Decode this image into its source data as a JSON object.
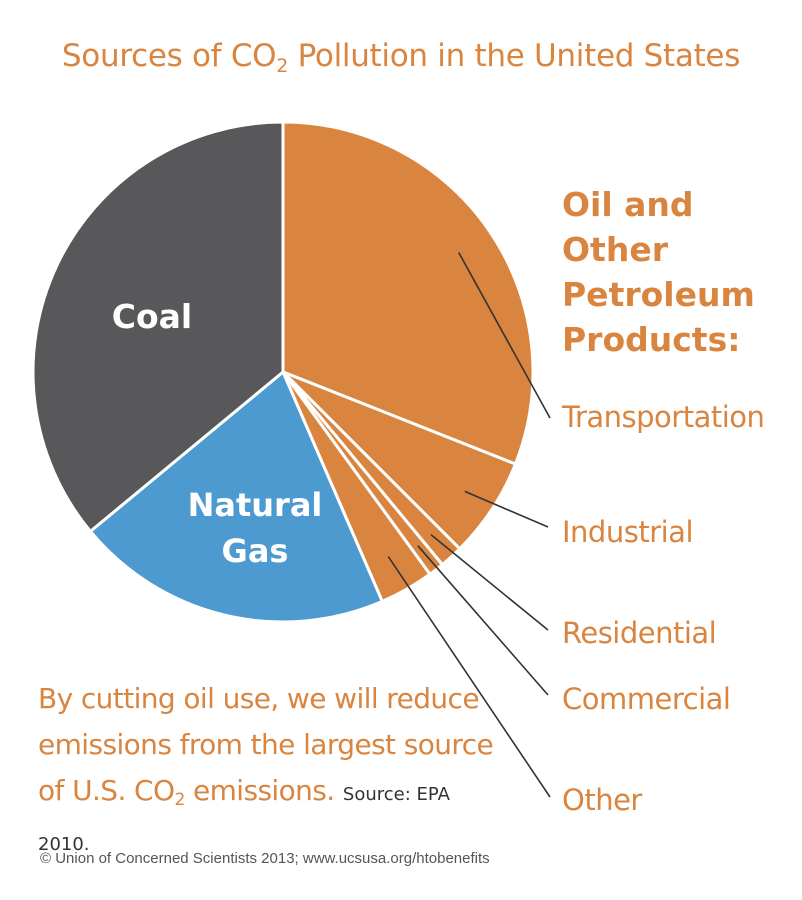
{
  "title": {
    "text": "Sources of CO",
    "sub": "2",
    "rest": " Pollution in the United States"
  },
  "colors": {
    "orange": "#d98540",
    "coal": "#58585a",
    "gas": "#4c9ad0",
    "white": "#ffffff"
  },
  "oil_heading": [
    "Oil and",
    "Other",
    "Petroleum",
    "Products:"
  ],
  "chart_data": {
    "type": "pie",
    "title": "Sources of CO2 Pollution in the United States",
    "start_angle_deg": 0,
    "direction": "clockwise",
    "slices": [
      {
        "label": "Transportation",
        "value": 31.0,
        "color": "#d98540",
        "group": "oil"
      },
      {
        "label": "Industrial",
        "value": 6.5,
        "color": "#d98540",
        "group": "oil"
      },
      {
        "label": "Residential",
        "value": 1.5,
        "color": "#d98540",
        "group": "oil"
      },
      {
        "label": "Commercial",
        "value": 1.0,
        "color": "#d98540",
        "group": "oil"
      },
      {
        "label": "Other",
        "value": 3.5,
        "color": "#d98540",
        "group": "oil"
      },
      {
        "label": "Natural Gas",
        "value": 20.5,
        "color": "#4c9ad0",
        "group": "gas"
      },
      {
        "label": "Coal",
        "value": 36.0,
        "color": "#58585a",
        "group": "coal"
      }
    ]
  },
  "labels": {
    "coal": "Coal",
    "gas_line1": "Natural",
    "gas_line2": "Gas",
    "transportation": "Transportation",
    "industrial": "Industrial",
    "residential": "Residential",
    "commercial": "Commercial",
    "other": "Other"
  },
  "note": {
    "line1": "By cutting oil use, we will reduce",
    "line2": "emissions from the largest source",
    "line3a": "of U.S. CO",
    "line3sub": "2",
    "line3b": " emissions.",
    "source": "Source: EPA 2010."
  },
  "credit": "© Union of Concerned Scientists 2013; www.ucsusa.org/htobenefits"
}
